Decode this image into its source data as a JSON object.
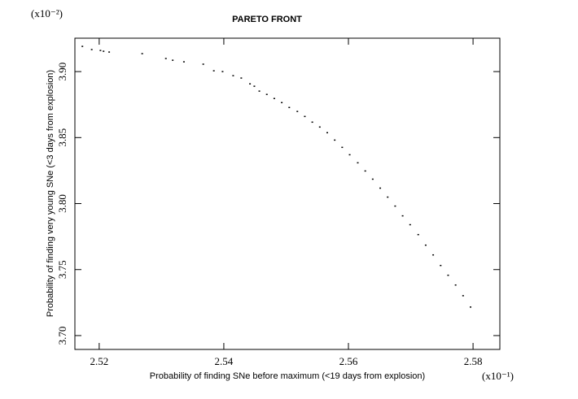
{
  "chart_data": {
    "type": "scatter",
    "title": "PARETO FRONT",
    "x_label": "Probability of finding SNe before maximum (<19 days from explosion)",
    "y_label": "Probability of finding very young SNe (<3 days from explosion)",
    "x_scale_label": "(x10⁻¹)",
    "y_scale_label": "(x10⁻²)",
    "color": "#000000",
    "xlim": [
      2.5161,
      2.5843
    ],
    "ylim": [
      3.6895,
      3.9253
    ],
    "xticks": [
      {
        "value": 2.52,
        "label": "2.52"
      },
      {
        "value": 2.54,
        "label": "2.54"
      },
      {
        "value": 2.56,
        "label": "2.56"
      },
      {
        "value": 2.58,
        "label": "2.58"
      }
    ],
    "yticks": [
      {
        "value": 3.7,
        "label": "3.70"
      },
      {
        "value": 3.75,
        "label": "3.75"
      },
      {
        "value": 3.8,
        "label": "3.80"
      },
      {
        "value": 3.85,
        "label": "3.85"
      },
      {
        "value": 3.9,
        "label": "3.90"
      }
    ],
    "x": [
      2.5173,
      2.5188,
      2.5202,
      2.5207,
      2.5216,
      2.5269,
      2.5307,
      2.5318,
      2.5336,
      2.5367,
      2.5384,
      2.5398,
      2.5415,
      2.5428,
      2.5442,
      2.5449,
      2.5457,
      2.5469,
      2.5481,
      2.5493,
      2.5505,
      2.5518,
      2.553,
      2.5542,
      2.5554,
      2.5566,
      2.5578,
      2.559,
      2.5602,
      2.5615,
      2.5627,
      2.5639,
      2.5651,
      2.5663,
      2.5675,
      2.5687,
      2.5699,
      2.5712,
      2.5724,
      2.5736,
      2.5748,
      2.576,
      2.5772,
      2.5784,
      2.5796
    ],
    "values": [
      3.9191,
      3.9167,
      3.916,
      3.9154,
      3.9148,
      3.9136,
      3.9099,
      3.9086,
      3.9074,
      3.9056,
      3.9006,
      3.9,
      3.8969,
      3.8951,
      3.8907,
      3.8889,
      3.8852,
      3.8827,
      3.8796,
      3.8765,
      3.8728,
      3.8698,
      3.866,
      3.8617,
      3.858,
      3.8537,
      3.8481,
      3.8426,
      3.837,
      3.8309,
      3.8247,
      3.8185,
      3.8117,
      3.8049,
      3.7981,
      3.7907,
      3.784,
      3.7765,
      3.7685,
      3.7611,
      3.7531,
      3.7457,
      3.7383,
      3.7302,
      3.7216
    ]
  }
}
